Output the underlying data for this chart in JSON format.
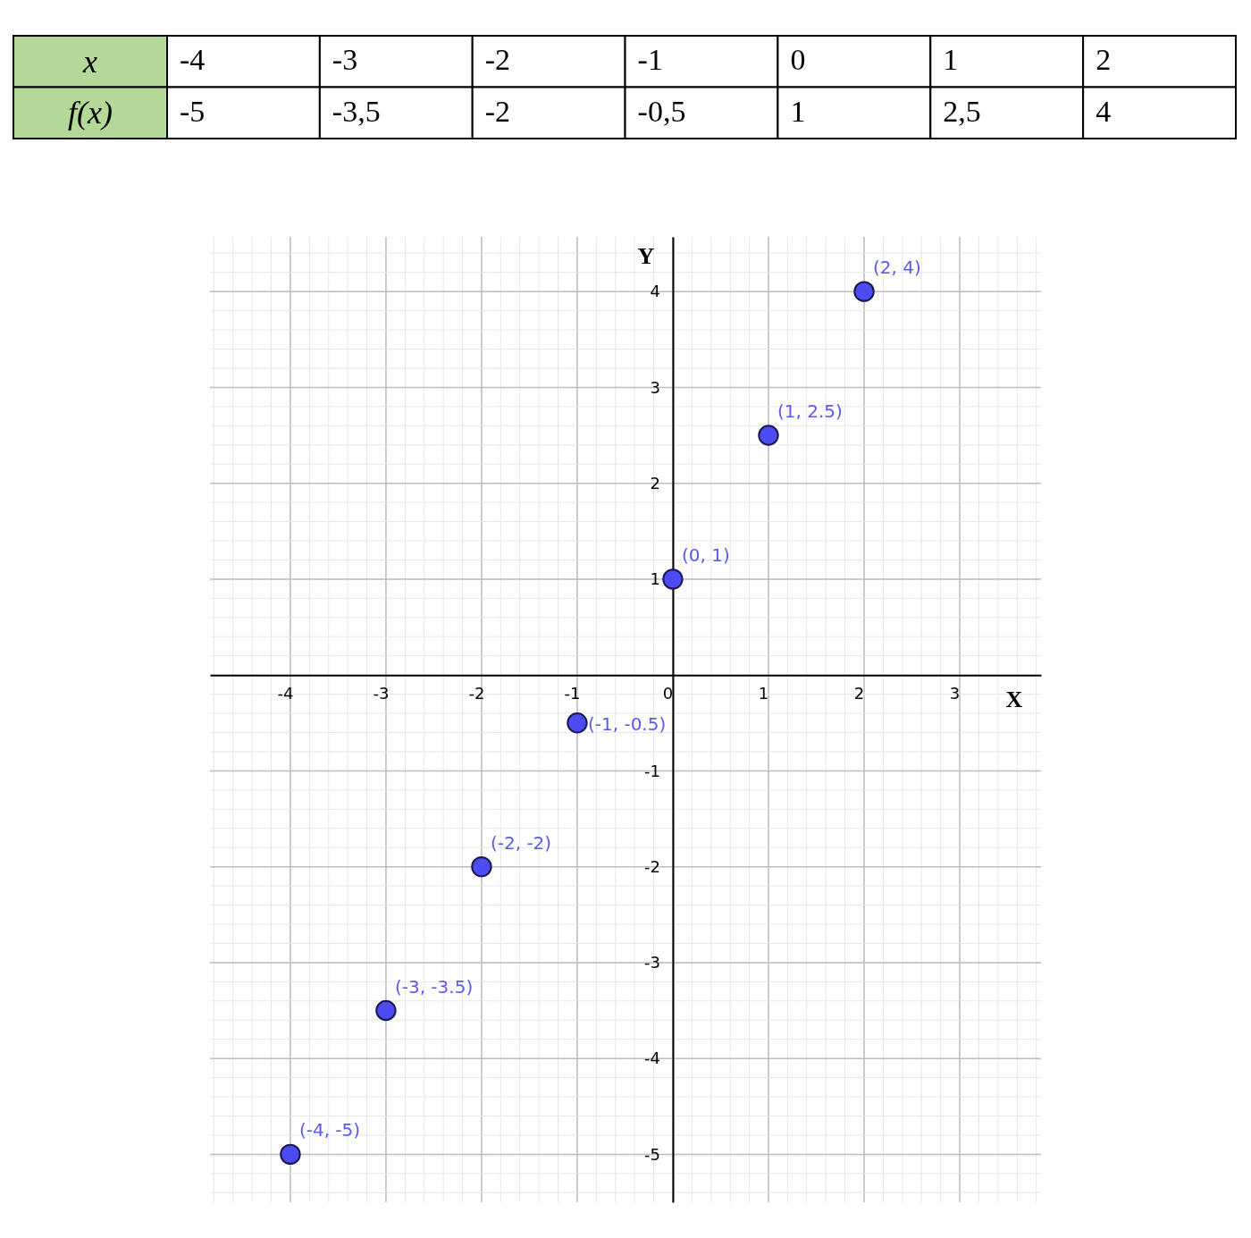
{
  "chart_data": {
    "type": "scatter",
    "xlabel": "X",
    "ylabel": "Y",
    "x": [
      -4,
      -3,
      -2,
      -1,
      0,
      1,
      2
    ],
    "values": [
      -5,
      -3.5,
      -2,
      -0.5,
      1,
      2.5,
      4
    ],
    "value_labels": [
      "(-4, -5)",
      "(-3, -3.5)",
      "(-2, -2)",
      "(-1, -0.5)",
      "(0, 1)",
      "(1, 2.5)",
      "(2, 4)"
    ],
    "color": "#4c4cf2",
    "marker": "circle",
    "grid": true,
    "xlim": [
      -4.84,
      3.85
    ],
    "xticks": [
      -4,
      -3,
      -2,
      -1,
      0,
      1,
      2,
      3
    ],
    "ylim": [
      -5.5,
      4.57
    ],
    "yticks": [
      -5,
      -4,
      -3,
      -2,
      -1,
      1,
      2,
      3,
      4
    ],
    "annotations": [
      "x",
      "-4",
      "-3",
      "-2",
      "-1",
      "0",
      "1",
      "2",
      "f(x)",
      "-5",
      "-3,5",
      "-2",
      "-0,5",
      "1",
      "2,5",
      "4"
    ]
  }
}
